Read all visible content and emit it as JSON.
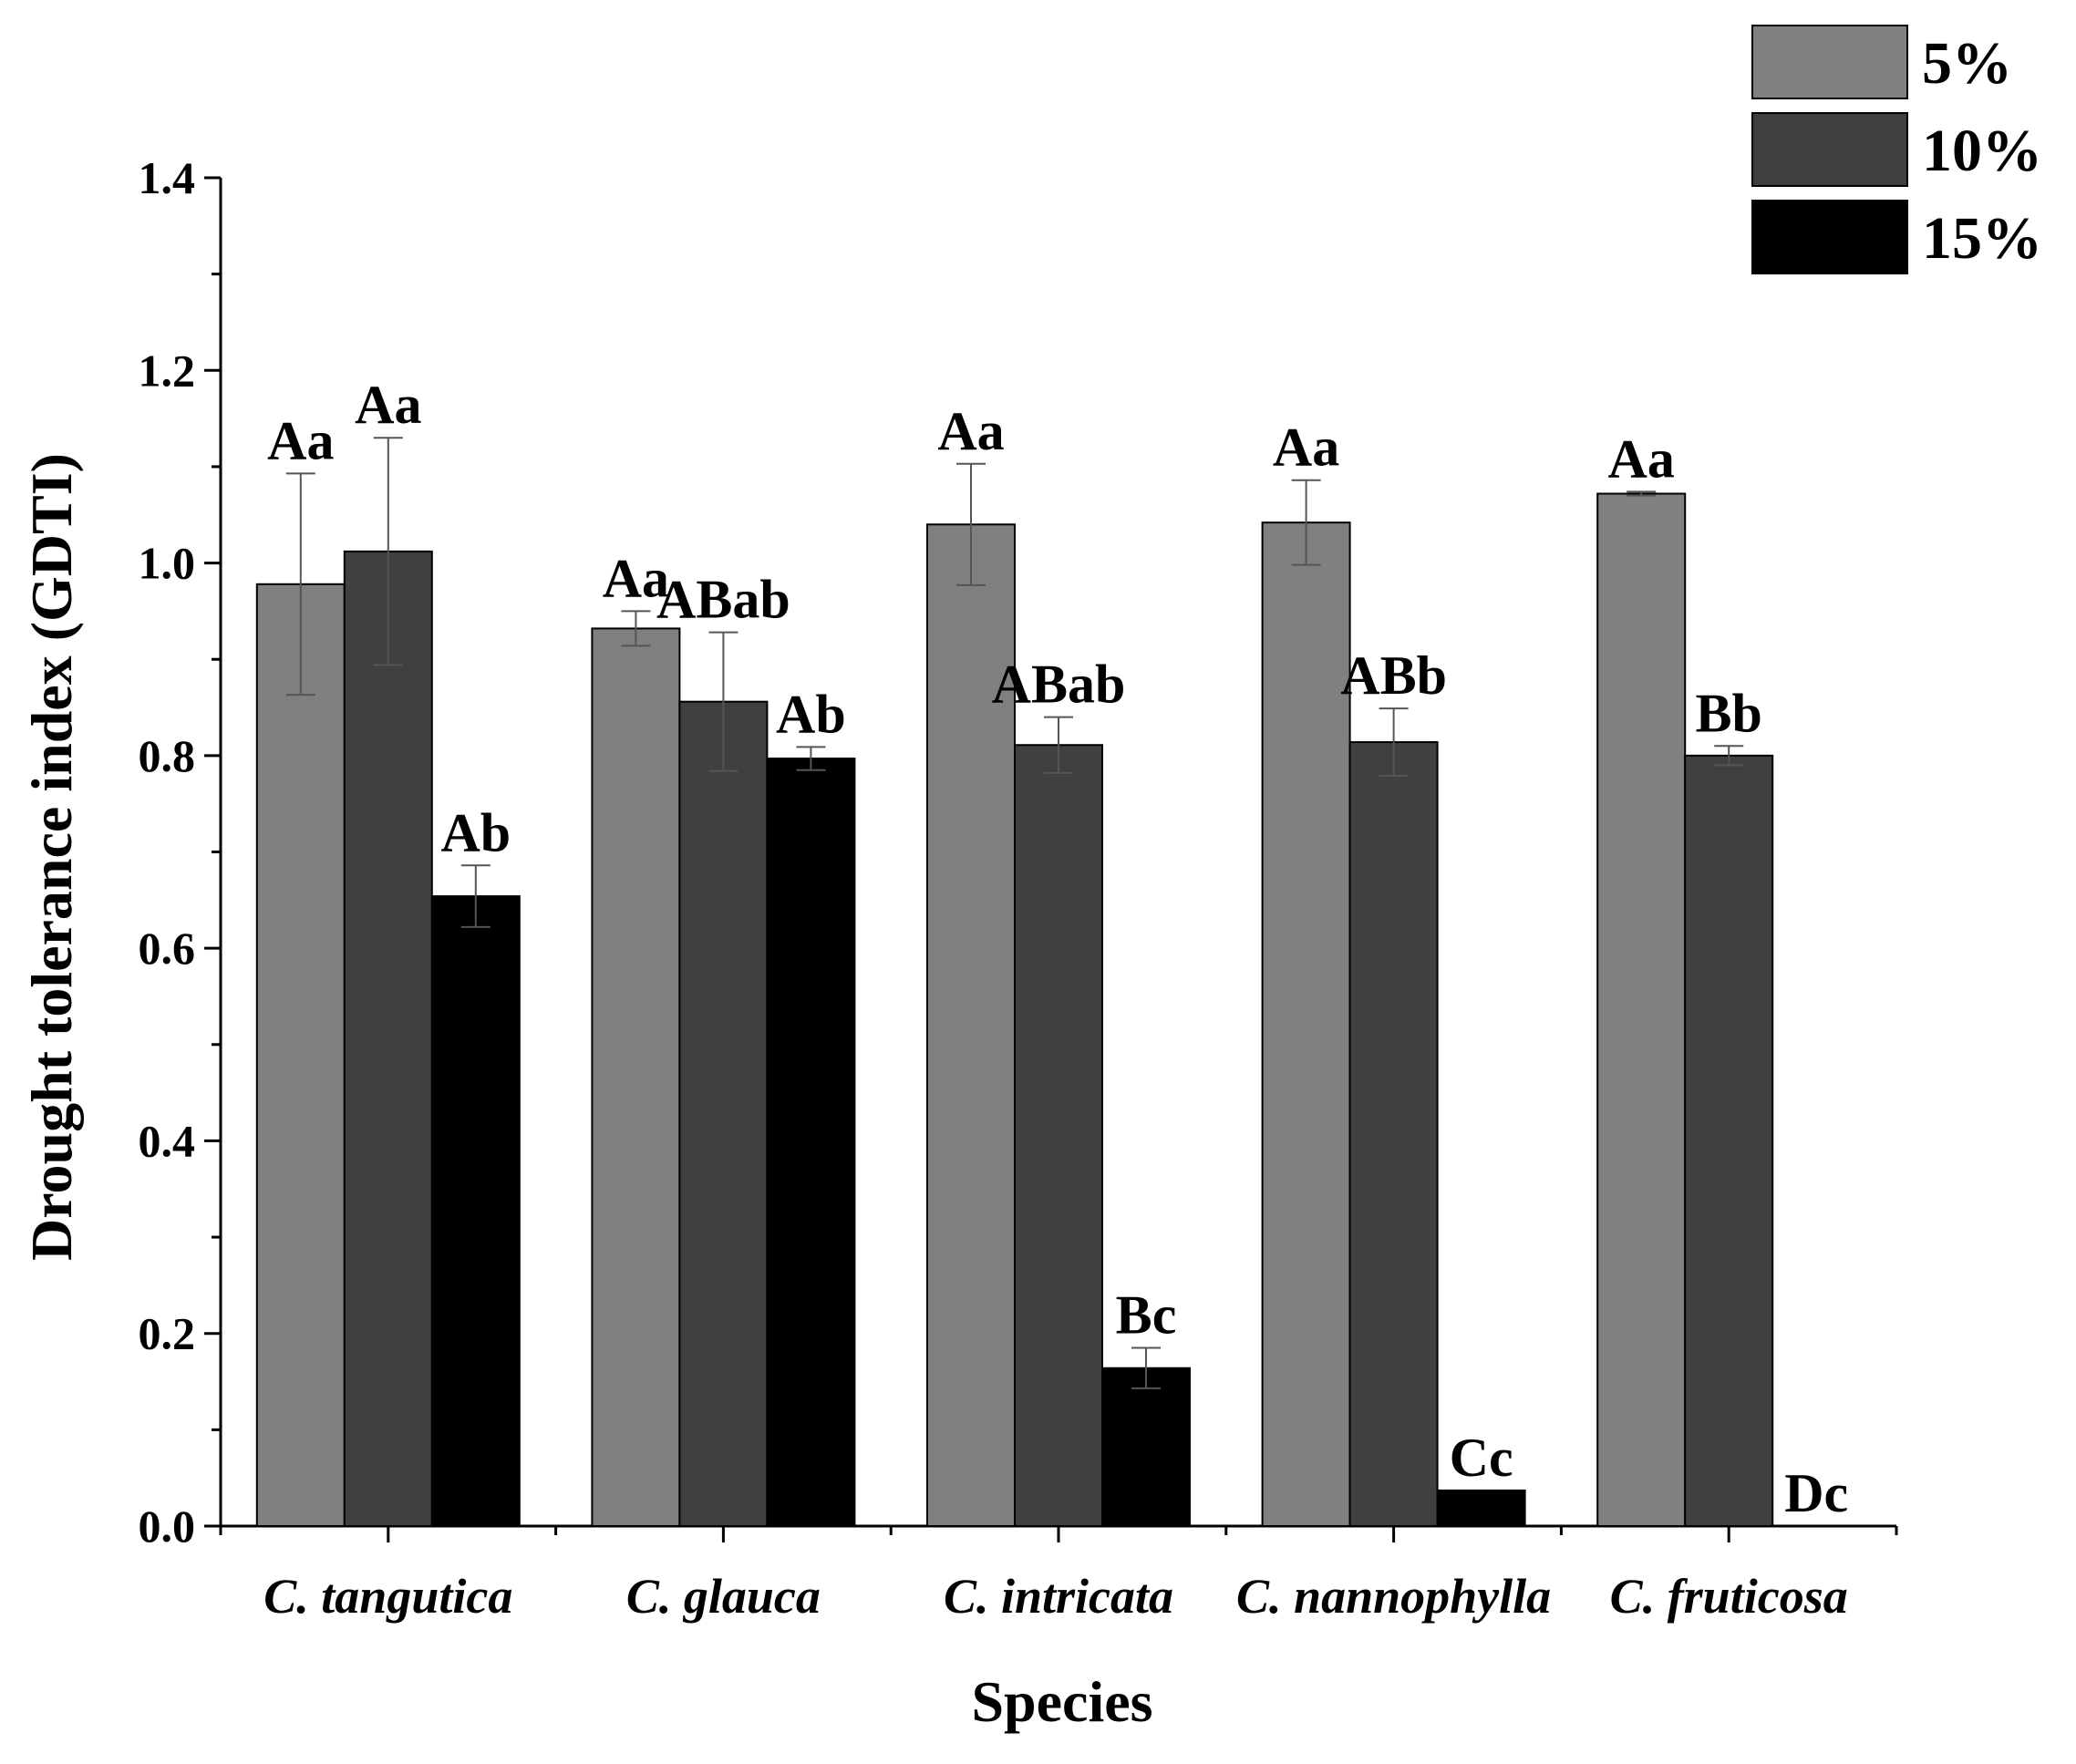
{
  "chart_data": {
    "type": "bar",
    "title": "",
    "xlabel": "Species",
    "ylabel": "Drought tolerance index (GDTI)",
    "ylim": [
      0.0,
      1.4
    ],
    "yticks": [
      "0.0",
      "0.2",
      "0.4",
      "0.6",
      "0.8",
      "1.0",
      "1.2",
      "1.4"
    ],
    "grid": false,
    "legend_position": "top-right",
    "categories": [
      "C. tangutica",
      "C. glauca",
      "C. intricata",
      "C. nannophylla",
      "C. fruticosa"
    ],
    "series": [
      {
        "name": "5%",
        "color": "#808080",
        "values": [
          0.978,
          0.932,
          1.04,
          1.042,
          1.072
        ],
        "errors": [
          0.115,
          0.018,
          0.063,
          0.044,
          0.002
        ],
        "labels": [
          "Aa",
          "Aa",
          "Aa",
          "Aa",
          "Aa"
        ]
      },
      {
        "name": "10%",
        "color": "#404040",
        "values": [
          1.012,
          0.856,
          0.811,
          0.814,
          0.8
        ],
        "errors": [
          0.118,
          0.072,
          0.029,
          0.035,
          0.01
        ],
        "labels": [
          "Aa",
          "ABab",
          "ABab",
          "ABb",
          "Bb"
        ]
      },
      {
        "name": "15%",
        "color": "#000000",
        "values": [
          0.654,
          0.797,
          0.164,
          0.037,
          0.0
        ],
        "errors": [
          0.032,
          0.012,
          0.021,
          0.0,
          0.0
        ],
        "labels": [
          "Ab",
          "Ab",
          "Bc",
          "Cc",
          "Dc"
        ]
      }
    ]
  }
}
